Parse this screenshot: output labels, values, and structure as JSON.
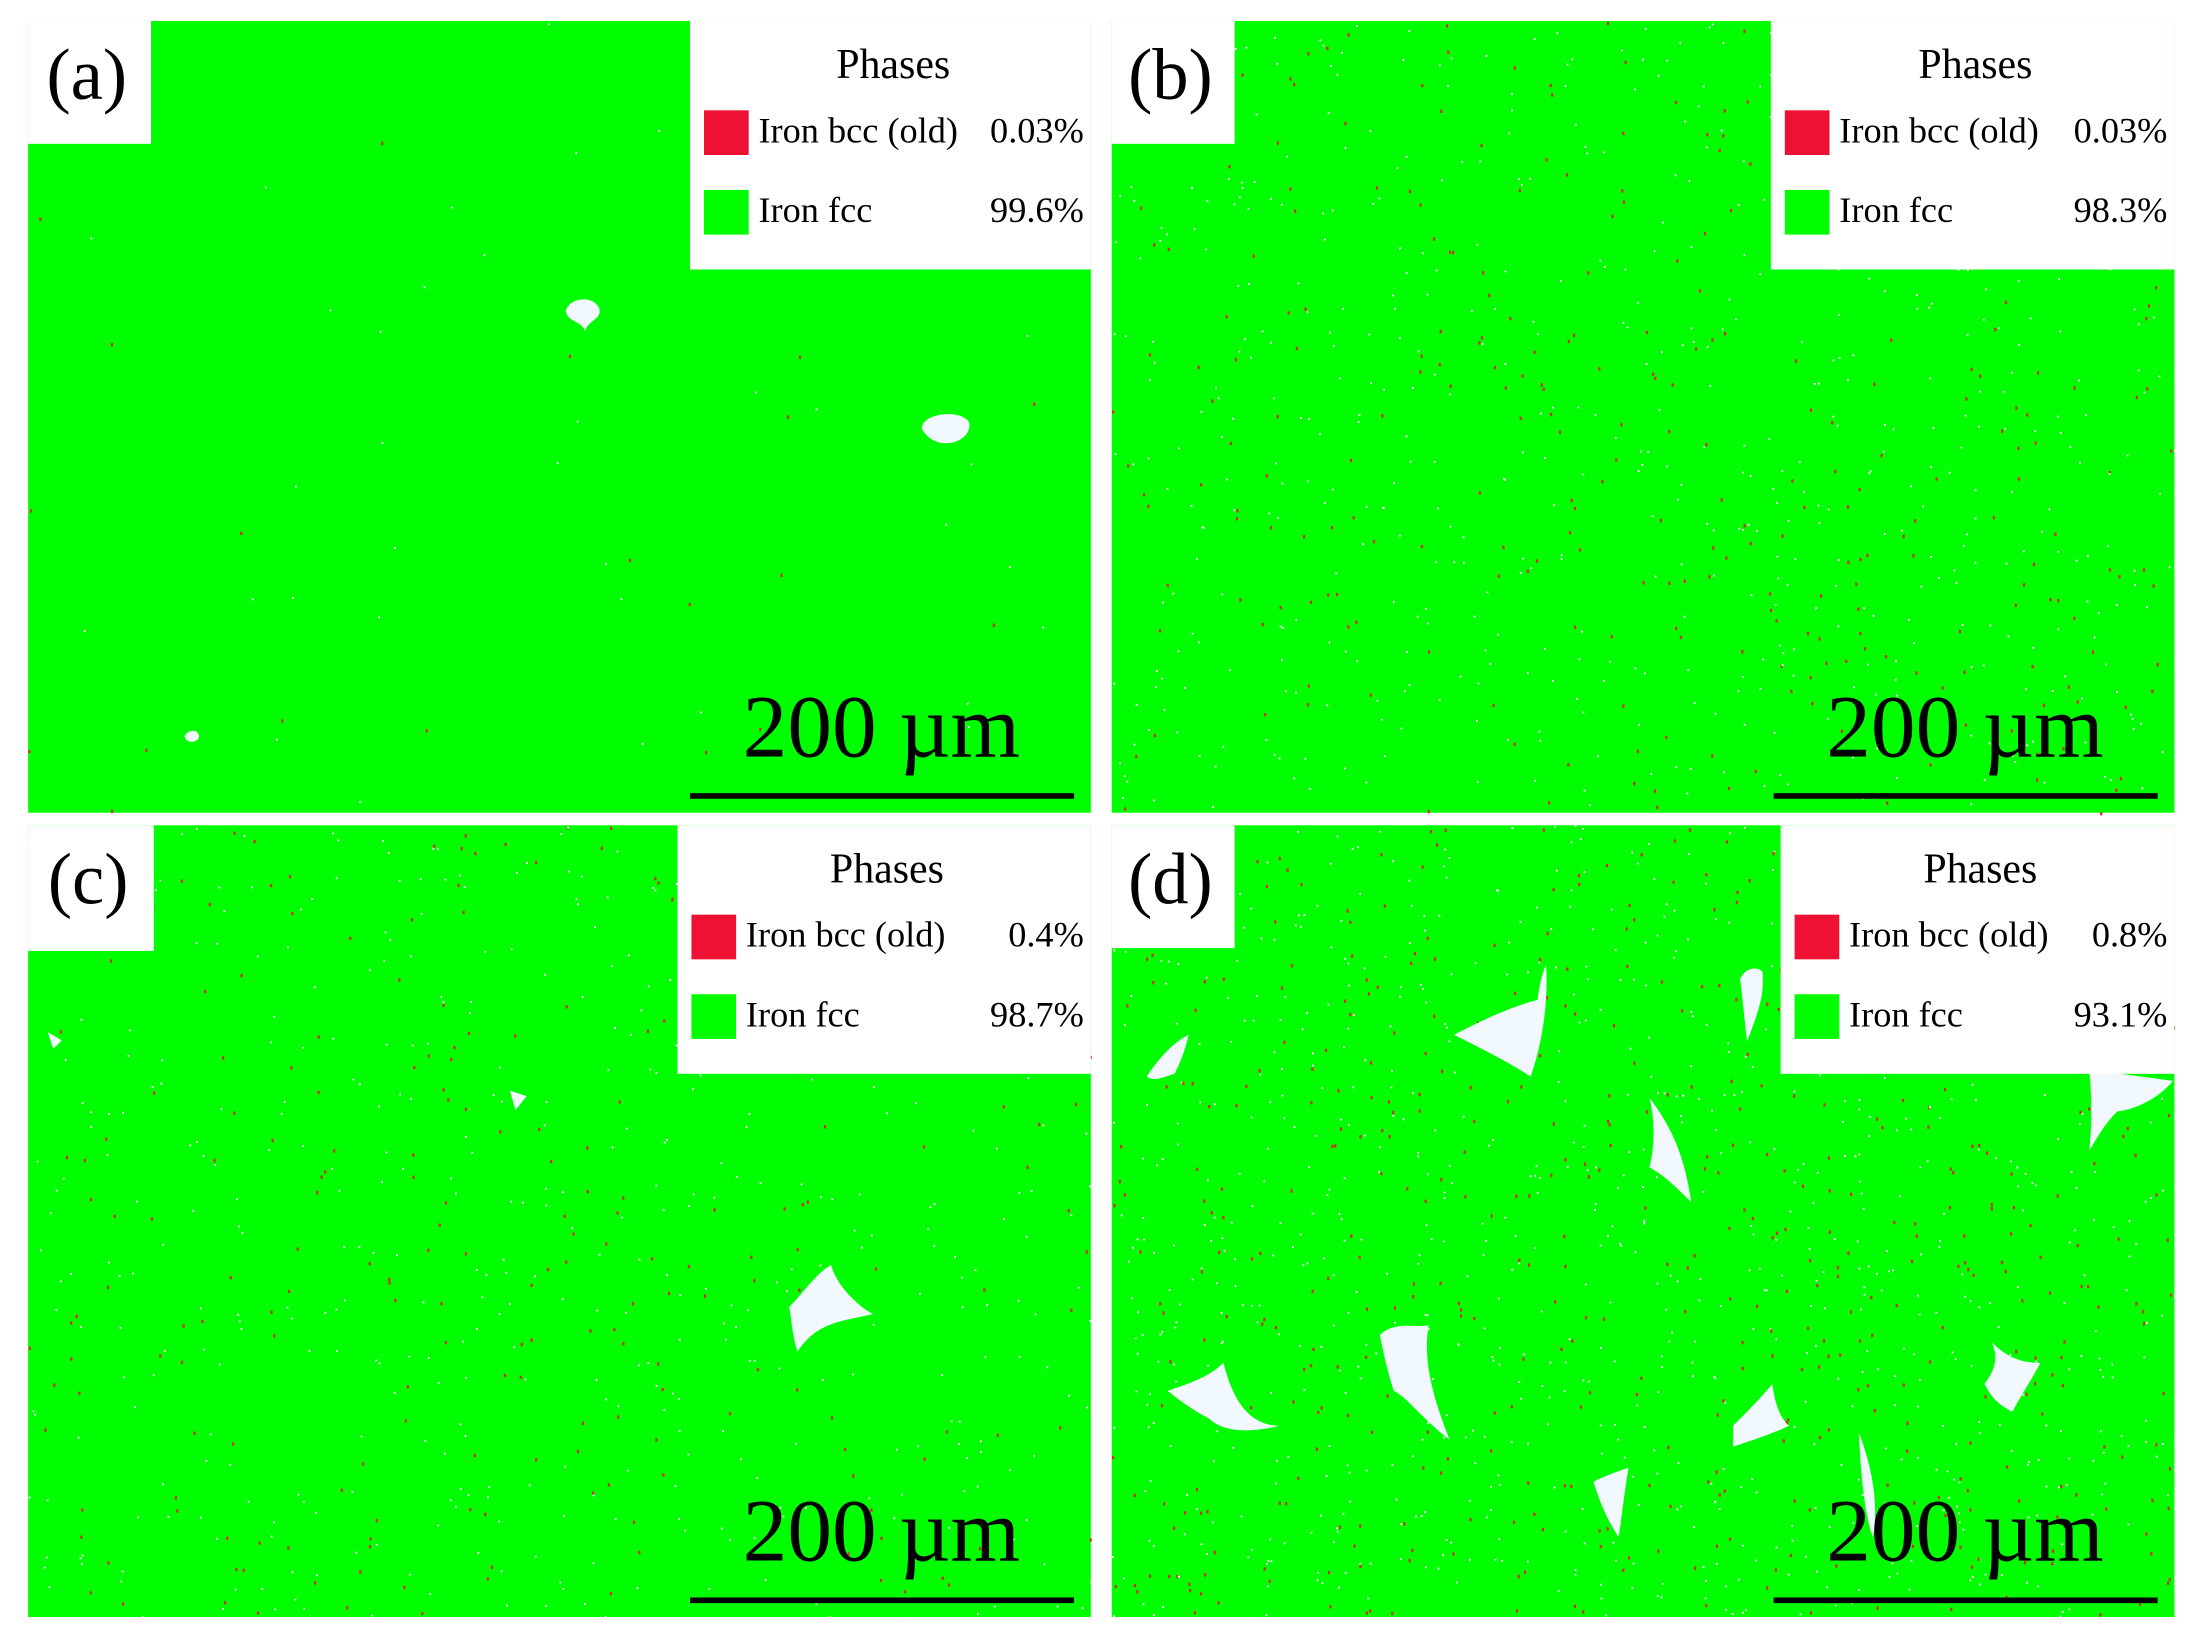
{
  "panels": [
    {
      "label": "(a)",
      "legend_title": "Phases",
      "entries": [
        {
          "name": "Iron bcc (old)",
          "value": "0.03%"
        },
        {
          "name": "Iron fcc",
          "value": "99.6%"
        }
      ],
      "scale_bar": "200 µm"
    },
    {
      "label": "(b)",
      "legend_title": "Phases",
      "entries": [
        {
          "name": "Iron bcc (old)",
          "value": "0.03%"
        },
        {
          "name": "Iron fcc",
          "value": "98.3%"
        }
      ],
      "scale_bar": "200 µm"
    },
    {
      "label": "(c)",
      "legend_title": "Phases",
      "entries": [
        {
          "name": "Iron bcc (old)",
          "value": "0.4%"
        },
        {
          "name": "Iron fcc",
          "value": "98.7%"
        }
      ],
      "scale_bar": "200 µm"
    },
    {
      "label": "(d)",
      "legend_title": "Phases",
      "entries": [
        {
          "name": "Iron bcc (old)",
          "value": "0.8%"
        },
        {
          "name": "Iron fcc",
          "value": "93.1%"
        }
      ],
      "scale_bar": "200 µm"
    }
  ]
}
